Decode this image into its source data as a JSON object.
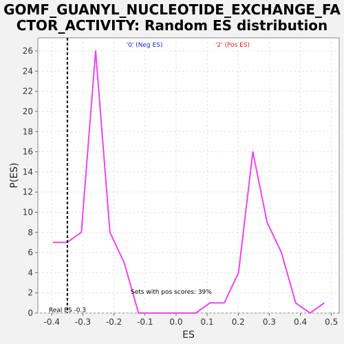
{
  "chart_data": {
    "type": "line",
    "title_line1": "GOMF_GUANYL_NUCLEOTIDE_EXCHANGE_FA",
    "title_line2": "CTOR_ACTIVITY: Random ES distribution",
    "xlabel": "ES",
    "ylabel": "P(ES)",
    "xlim": [
      -0.445,
      0.525
    ],
    "ylim": [
      0,
      27.3
    ],
    "x_ticks": [
      "-0.4",
      "-0.3",
      "-0.2",
      "-0.1",
      "0.0",
      "0.1",
      "0.2",
      "0.3",
      "0.4",
      "0.5"
    ],
    "x_tick_values": [
      -0.4,
      -0.3,
      -0.2,
      -0.1,
      0.0,
      0.1,
      0.2,
      0.3,
      0.4,
      0.5
    ],
    "y_ticks": [
      "0",
      "2",
      "4",
      "6",
      "8",
      "10",
      "12",
      "14",
      "16",
      "18",
      "20",
      "22",
      "24",
      "26"
    ],
    "y_tick_values": [
      0,
      2,
      4,
      6,
      8,
      10,
      12,
      14,
      16,
      18,
      20,
      22,
      24,
      26
    ],
    "grid": true,
    "series": [
      {
        "color": "#ee44ee",
        "x": [
          -0.397,
          -0.351,
          -0.305,
          -0.259,
          -0.213,
          -0.167,
          -0.121,
          -0.075,
          -0.029,
          0.017,
          0.063,
          0.109,
          0.155,
          0.201,
          0.247,
          0.293,
          0.339,
          0.385,
          0.431,
          0.477
        ],
        "y": [
          7,
          7,
          8,
          26,
          8,
          5,
          0,
          0,
          0,
          0,
          0,
          1,
          1,
          4,
          16,
          9,
          6,
          1,
          0,
          1
        ]
      }
    ],
    "real_es": {
      "x": -0.35,
      "label": "Real ES -0.3"
    },
    "legend": [
      {
        "label": "'0' (Neg ES)",
        "color": "#2222cc"
      },
      {
        "label": "'2' (Pos ES)",
        "color": "#dd2222"
      }
    ],
    "annotation": "Sets with pos scores: 39%"
  }
}
